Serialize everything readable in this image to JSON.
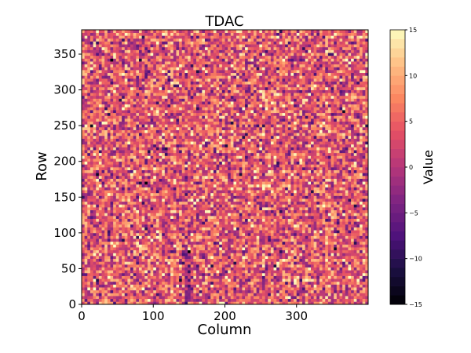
{
  "chart_data": {
    "type": "heatmap",
    "title": "TDAC",
    "xlabel": "Column",
    "ylabel": "Row",
    "xlim": [
      0,
      400
    ],
    "ylim": [
      0,
      384
    ],
    "x_ticks": [
      {
        "value": 0,
        "label": "0"
      },
      {
        "value": 100,
        "label": "100"
      },
      {
        "value": 200,
        "label": "200"
      },
      {
        "value": 300,
        "label": "300"
      }
    ],
    "y_ticks": [
      {
        "value": 0,
        "label": "0"
      },
      {
        "value": 50,
        "label": "50"
      },
      {
        "value": 100,
        "label": "100"
      },
      {
        "value": 150,
        "label": "150"
      },
      {
        "value": 200,
        "label": "200"
      },
      {
        "value": 250,
        "label": "250"
      },
      {
        "value": 300,
        "label": "300"
      },
      {
        "value": 350,
        "label": "350"
      }
    ],
    "colorbar": {
      "label": "Value",
      "min": -15,
      "max": 15,
      "colormap": "magma",
      "ticks": [
        {
          "value": -15,
          "label": "−15"
        },
        {
          "value": -10,
          "label": "−10"
        },
        {
          "value": -5,
          "label": "−5"
        },
        {
          "value": 0,
          "label": "0"
        },
        {
          "value": 5,
          "label": "5"
        },
        {
          "value": 10,
          "label": "10"
        },
        {
          "value": 15,
          "label": "15"
        }
      ]
    },
    "distribution": {
      "description": "random per-pixel TDAC noise",
      "mean": 4,
      "std": 5
    },
    "features": [
      {
        "type": "low-value stripe",
        "x_range": [
          144,
          152
        ],
        "y_range": [
          0,
          75
        ],
        "mean": -2
      }
    ]
  }
}
